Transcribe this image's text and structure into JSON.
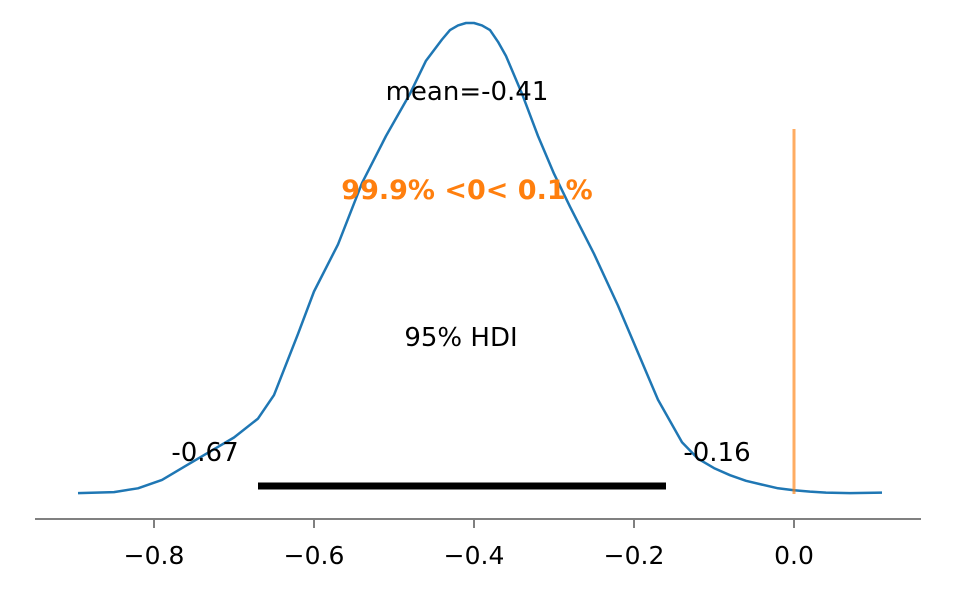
{
  "chart_data": {
    "type": "area",
    "title": "",
    "xlabel": "",
    "ylabel": "",
    "xlim": [
      -0.9,
      0.11
    ],
    "xticks": [
      -0.8,
      -0.6,
      -0.4,
      -0.2,
      0.0
    ],
    "xtick_labels": [
      "−0.8",
      "−0.6",
      "−0.4",
      "−0.2",
      "0.0"
    ],
    "grid": false,
    "series": [
      {
        "color": "#1f77b4",
        "x": [
          -0.895,
          -0.85,
          -0.82,
          -0.79,
          -0.76,
          -0.73,
          -0.7,
          -0.67,
          -0.65,
          -0.62,
          -0.6,
          -0.57,
          -0.54,
          -0.51,
          -0.48,
          -0.46,
          -0.44,
          -0.43,
          -0.42,
          -0.41,
          -0.4,
          -0.39,
          -0.38,
          -0.37,
          -0.36,
          -0.34,
          -0.32,
          -0.3,
          -0.28,
          -0.25,
          -0.22,
          -0.2,
          -0.17,
          -0.14,
          -0.12,
          -0.1,
          -0.08,
          -0.06,
          -0.04,
          -0.02,
          0.0,
          0.02,
          0.04,
          0.07,
          0.11
        ],
        "y": [
          0.002,
          0.004,
          0.012,
          0.03,
          0.06,
          0.09,
          0.12,
          0.16,
          0.21,
          0.34,
          0.43,
          0.53,
          0.66,
          0.76,
          0.85,
          0.92,
          0.965,
          0.985,
          0.995,
          1.0,
          1.0,
          0.995,
          0.985,
          0.96,
          0.93,
          0.85,
          0.76,
          0.68,
          0.61,
          0.51,
          0.4,
          0.32,
          0.2,
          0.11,
          0.075,
          0.055,
          0.04,
          0.028,
          0.02,
          0.012,
          0.008,
          0.005,
          0.003,
          0.002,
          0.003
        ]
      }
    ],
    "mean_label": "mean=-0.41",
    "ref_value": 0.0,
    "ref_text": "99.9% <0< 0.1%",
    "ref_color": "#ff7f0e",
    "hdi": {
      "label": "95% HDI",
      "low": -0.67,
      "high": -0.16,
      "low_label": "-0.67",
      "high_label": "-0.16",
      "color": "#000000"
    }
  }
}
